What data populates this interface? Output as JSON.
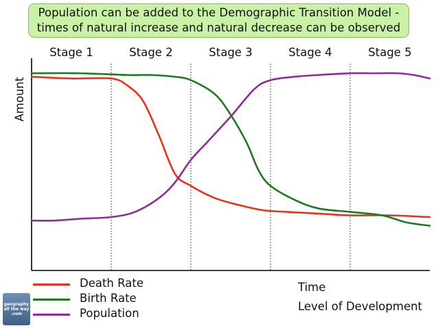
{
  "banner": {
    "line1": "Population can be added to the Demographic Transition Model -",
    "line2": "times of natural increase and natural decrease can be observed"
  },
  "colors": {
    "death": "#e8321e",
    "birth": "#1f7a1f",
    "population": "#8e2a9a",
    "banner_bg": "#c9f2a6"
  },
  "x_label": "Time",
  "x_sublabel": "Level of Development",
  "logo": {
    "line1": "geography",
    "line2": "all the way",
    "line3": ".com"
  },
  "chart_data": {
    "type": "line",
    "title": "",
    "xlabel": "Time",
    "ylabel": "Amount",
    "xlim": [
      0,
      5
    ],
    "ylim": [
      0,
      100
    ],
    "grid": false,
    "stages": [
      "Stage 1",
      "Stage 2",
      "Stage 3",
      "Stage 4",
      "Stage 5"
    ],
    "stage_boundaries": [
      1,
      2,
      3,
      4
    ],
    "legend_position": "bottom-left",
    "series": [
      {
        "name": "Death Rate",
        "color": "#e8321e",
        "x": [
          0,
          0.5,
          1.0,
          1.2,
          1.4,
          1.6,
          1.8,
          2.0,
          2.3,
          2.6,
          2.9,
          3.2,
          3.6,
          4.0,
          4.5,
          5.0
        ],
        "y": [
          98,
          97,
          97,
          93,
          84,
          64,
          42,
          35,
          28,
          24,
          21,
          20,
          19,
          18,
          18,
          17
        ]
      },
      {
        "name": "Birth Rate",
        "color": "#1f7a1f",
        "x": [
          0,
          0.6,
          1.2,
          1.5,
          1.8,
          2.0,
          2.3,
          2.5,
          2.7,
          2.85,
          3.0,
          3.3,
          3.6,
          4.0,
          4.4,
          4.7,
          5.0
        ],
        "y": [
          100,
          100,
          99,
          99,
          98,
          96,
          88,
          76,
          60,
          44,
          35,
          27,
          22,
          20,
          18,
          14,
          12
        ]
      },
      {
        "name": "Population",
        "color": "#8e2a9a",
        "x": [
          0,
          0.3,
          0.6,
          1.0,
          1.3,
          1.6,
          1.8,
          2.0,
          2.2,
          2.5,
          2.8,
          3.0,
          3.3,
          3.6,
          4.0,
          4.3,
          4.6,
          4.8,
          5.0
        ],
        "y": [
          15,
          15,
          16,
          17,
          20,
          28,
          37,
          50,
          60,
          75,
          91,
          96,
          98,
          99,
          100,
          100,
          100,
          99,
          97
        ]
      }
    ]
  }
}
